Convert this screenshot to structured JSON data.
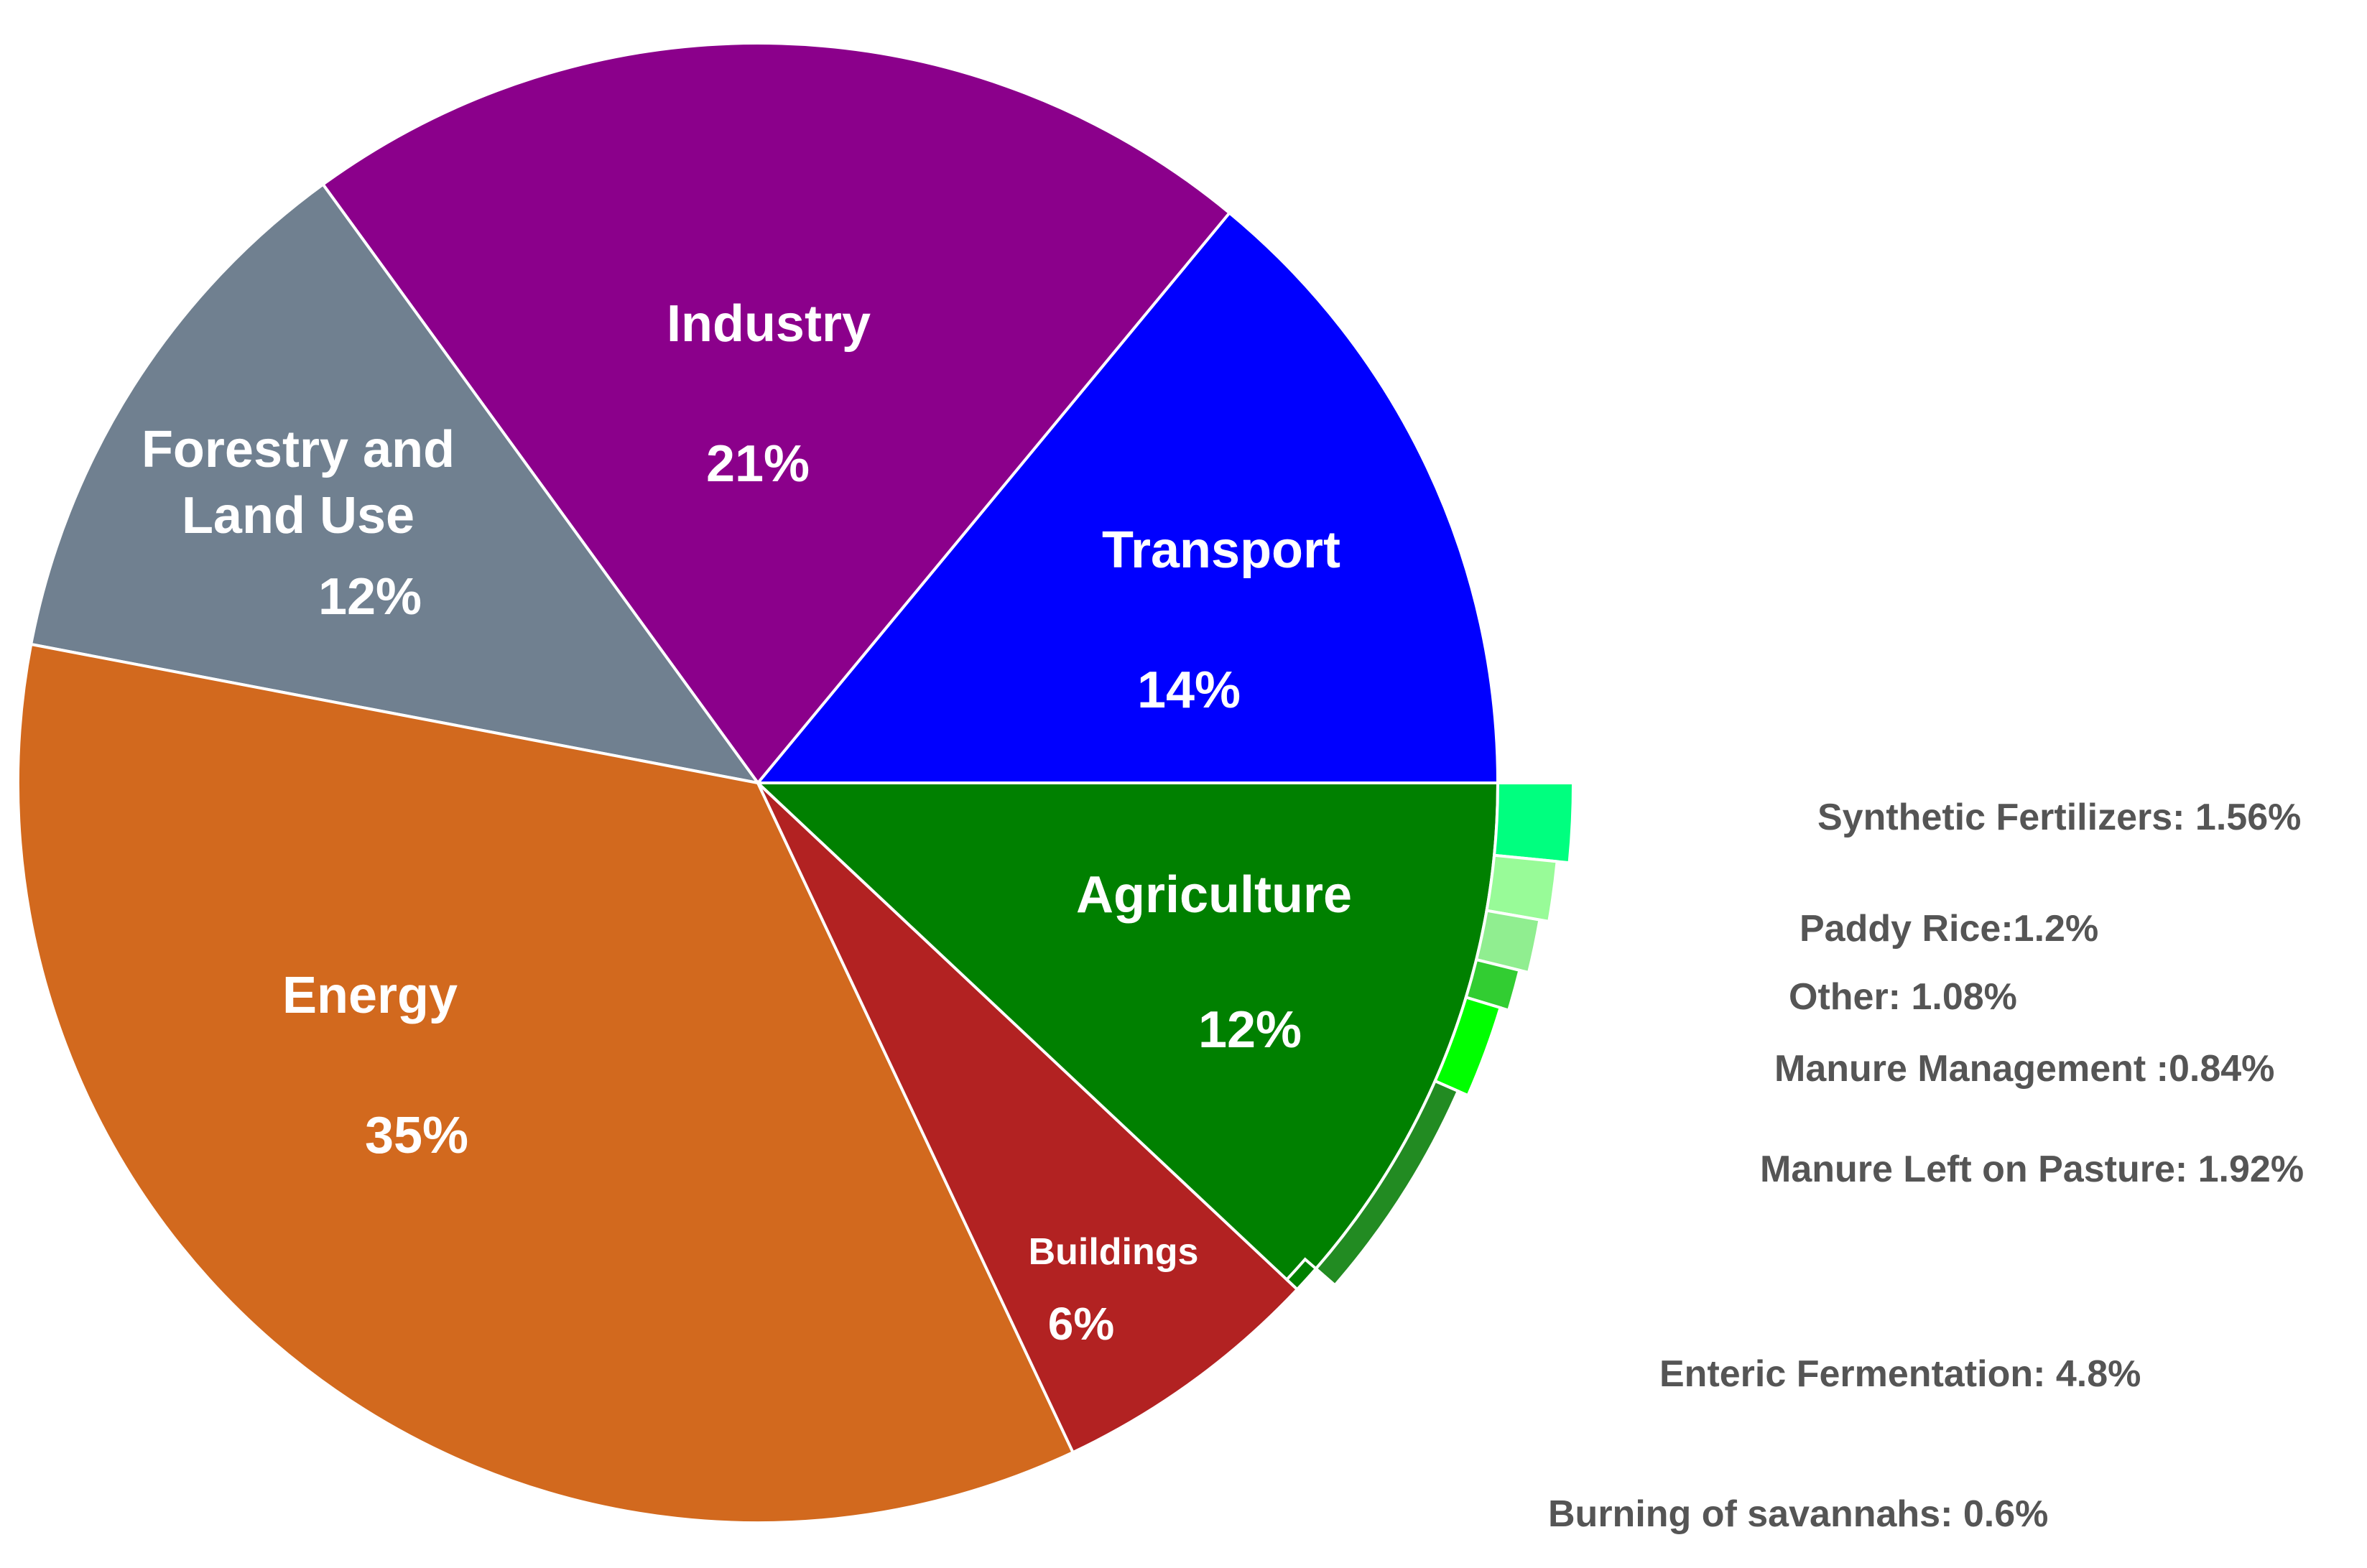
{
  "chart_data": {
    "type": "pie",
    "title": "",
    "slices": [
      {
        "name": "Transport",
        "value_label": "14%",
        "value": 14,
        "color": "#0000FF"
      },
      {
        "name": "Industry",
        "value_label": "21%",
        "value": 21,
        "color": "#8B008B"
      },
      {
        "name": "Forestry and Land Use",
        "name_lines": [
          "Forestry and",
          "Land Use"
        ],
        "value_label": "12%",
        "value": 12,
        "color": "#708090"
      },
      {
        "name": "Energy",
        "value_label": "35%",
        "value": 35,
        "color": "#D2691E"
      },
      {
        "name": "Buildings",
        "value_label": "6%",
        "value": 6,
        "color": "#B22222"
      },
      {
        "name": "Agriculture",
        "value_label": "12%",
        "value": 12,
        "color": "#008000"
      }
    ],
    "breakdown": {
      "parent": "Agriculture",
      "slices": [
        {
          "label": "Synthetic Fertilizers: 1.56%",
          "value": 1.56,
          "color": "#00FF7F"
        },
        {
          "label": "Paddy Rice:1.2%",
          "value": 1.2,
          "color": "#98FB98"
        },
        {
          "label": "Other: 1.08%",
          "value": 1.08,
          "color": "#90EE90"
        },
        {
          "label": "Manure Management :0.84%",
          "value": 0.84,
          "color": "#32CD32"
        },
        {
          "label": "Manure Left on Pasture: 1.92%",
          "value": 1.92,
          "color": "#00FF00"
        },
        {
          "label": "Enteric Fermentation: 4.8%",
          "value": 4.8,
          "color": "#228B22"
        },
        {
          "label": "Burning of savannahs: 0.6%",
          "value": 0.6,
          "color": "#008000"
        }
      ]
    }
  }
}
